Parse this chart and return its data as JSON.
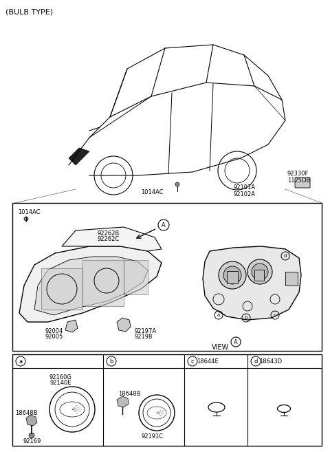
{
  "title": "(BULB TYPE)",
  "bg_color": "#ffffff",
  "line_color": "#000000",
  "text_color": "#000000",
  "parts_labels": {
    "top_left": "(BULB TYPE)",
    "label_1014AC_top": "1014AC",
    "label_92101A": "92101A",
    "label_92102A": "92102A",
    "label_92330F": "92330F",
    "label_1125DB": "1125DB",
    "label_1014AC_left": "1014AC",
    "label_92262B": "92262B",
    "label_92262C": "92262C",
    "label_92004": "92004",
    "label_92005": "92005",
    "label_92197A": "92197A",
    "label_92198": "92198",
    "label_view_A": "VIEW"
  },
  "table_labels": {
    "col_a": "a",
    "col_b": "b",
    "col_c": "c",
    "col_d": "d",
    "col_c_part": "18644E",
    "col_d_part": "18643D",
    "part_92160G": "92160G",
    "part_92140E": "92140E",
    "part_18648B_a": "18648B",
    "part_92169": "92169",
    "part_18648B_b": "18648B",
    "part_92191C": "92191C"
  }
}
